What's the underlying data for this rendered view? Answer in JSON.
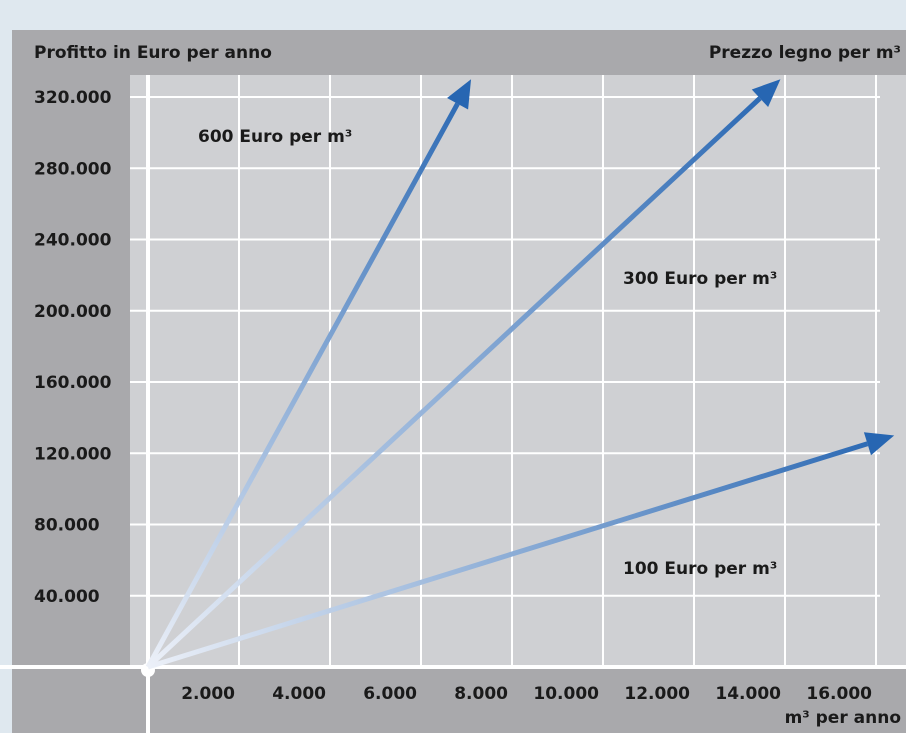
{
  "chart_data": {
    "type": "line",
    "title": "",
    "ylabel": "Profitto in Euro per anno",
    "xlabel": "m³ per anno",
    "legend_title": "Prezzo legno per m³",
    "xlim": [
      0,
      16000
    ],
    "ylim": [
      0,
      320000
    ],
    "x_ticks": [
      2000,
      4000,
      6000,
      8000,
      10000,
      12000,
      14000,
      16000
    ],
    "x_tick_labels": [
      "2.000",
      "4.000",
      "6.000",
      "8.000",
      "10.000",
      "12.000",
      "14.000",
      "16.000"
    ],
    "y_ticks": [
      40000,
      80000,
      120000,
      160000,
      200000,
      240000,
      280000,
      320000
    ],
    "y_tick_labels": [
      "40.000",
      "80.000",
      "120.000",
      "160.000",
      "200.000",
      "240.000",
      "280.000",
      "320.000"
    ],
    "grid": true,
    "series": [
      {
        "name": "600 Euro per m³",
        "x": [
          0,
          7100
        ],
        "y": [
          0,
          330000
        ]
      },
      {
        "name": "300 Euro per m³",
        "x": [
          0,
          13900
        ],
        "y": [
          0,
          330000
        ]
      },
      {
        "name": "100 Euro per m³",
        "x": [
          0,
          16400
        ],
        "y": [
          0,
          130000
        ]
      }
    ],
    "colors": {
      "background": "#dfe8ef",
      "frame": "#a9a9ac",
      "plot": "#cfd0d3",
      "grid": "#ffffff",
      "arrow_start": "#ecf0f8",
      "arrow_end": "#2766b2"
    }
  }
}
